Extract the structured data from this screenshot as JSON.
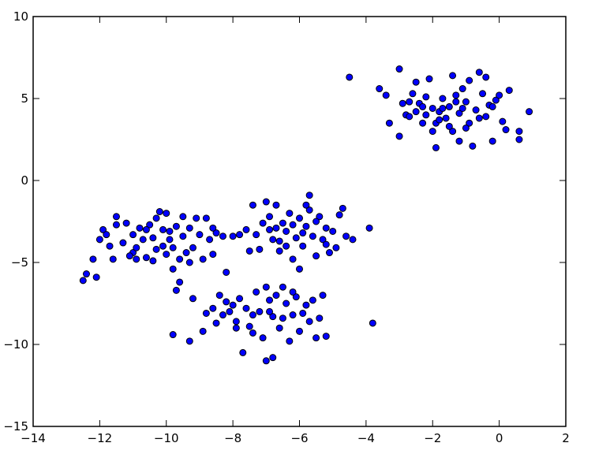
{
  "chart_data": {
    "type": "scatter",
    "title": "",
    "xlabel": "",
    "ylabel": "",
    "xlim": [
      -14,
      2
    ],
    "ylim": [
      -15,
      10
    ],
    "xticks": [
      -14,
      -12,
      -10,
      -8,
      -6,
      -4,
      -2,
      0,
      2
    ],
    "yticks": [
      -15,
      -10,
      -5,
      0,
      5,
      10
    ],
    "xtick_labels": [
      "−14",
      "−12",
      "−10",
      "−8",
      "−6",
      "−4",
      "−2",
      "0",
      "2"
    ],
    "ytick_labels": [
      "−15",
      "−10",
      "−5",
      "0",
      "5",
      "10"
    ],
    "grid": false,
    "marker_color": "#0000ff",
    "marker_edge_color": "#000000",
    "points": [
      [
        -4.5,
        6.3
      ],
      [
        -3.6,
        5.6
      ],
      [
        -3.4,
        5.2
      ],
      [
        -3.3,
        3.5
      ],
      [
        -3.0,
        6.8
      ],
      [
        -2.9,
        4.7
      ],
      [
        -2.8,
        4.0
      ],
      [
        -3.0,
        2.7
      ],
      [
        -2.7,
        3.9
      ],
      [
        -2.6,
        5.3
      ],
      [
        -2.5,
        6.0
      ],
      [
        -2.4,
        4.7
      ],
      [
        -2.3,
        3.5
      ],
      [
        -2.2,
        4.0
      ],
      [
        -2.2,
        5.1
      ],
      [
        -2.1,
        6.2
      ],
      [
        -2.0,
        4.4
      ],
      [
        -1.9,
        3.5
      ],
      [
        -1.9,
        2.0
      ],
      [
        -1.8,
        4.2
      ],
      [
        -1.7,
        5.0
      ],
      [
        -1.6,
        3.8
      ],
      [
        -1.5,
        4.5
      ],
      [
        -1.4,
        6.4
      ],
      [
        -1.4,
        3.0
      ],
      [
        -1.3,
        5.2
      ],
      [
        -1.2,
        4.1
      ],
      [
        -1.2,
        2.4
      ],
      [
        -1.1,
        5.6
      ],
      [
        -1.0,
        4.8
      ],
      [
        -0.9,
        3.5
      ],
      [
        -0.9,
        6.1
      ],
      [
        -0.8,
        2.1
      ],
      [
        -0.7,
        4.3
      ],
      [
        -0.6,
        6.6
      ],
      [
        -0.6,
        3.8
      ],
      [
        -0.5,
        5.3
      ],
      [
        -0.4,
        6.3
      ],
      [
        -0.3,
        4.6
      ],
      [
        -0.2,
        2.4
      ],
      [
        -0.1,
        4.9
      ],
      [
        0.0,
        5.2
      ],
      [
        0.1,
        3.6
      ],
      [
        0.2,
        3.1
      ],
      [
        0.3,
        5.5
      ],
      [
        0.6,
        3.0
      ],
      [
        0.6,
        2.5
      ],
      [
        0.9,
        4.2
      ],
      [
        -2.0,
        3.0
      ],
      [
        -1.7,
        4.4
      ],
      [
        -1.5,
        3.3
      ],
      [
        -1.1,
        4.4
      ],
      [
        -2.5,
        4.2
      ],
      [
        -2.7,
        4.8
      ],
      [
        -0.4,
        3.9
      ],
      [
        -1.8,
        3.7
      ],
      [
        -1.0,
        3.2
      ],
      [
        -0.2,
        4.5
      ],
      [
        -2.3,
        4.5
      ],
      [
        -1.3,
        4.8
      ],
      [
        -12.5,
        -6.1
      ],
      [
        -12.4,
        -5.7
      ],
      [
        -12.2,
        -4.8
      ],
      [
        -12.1,
        -5.9
      ],
      [
        -12.0,
        -3.6
      ],
      [
        -11.9,
        -3.0
      ],
      [
        -11.8,
        -3.3
      ],
      [
        -11.7,
        -4.0
      ],
      [
        -11.6,
        -4.8
      ],
      [
        -11.5,
        -2.2
      ],
      [
        -11.5,
        -2.7
      ],
      [
        -11.3,
        -3.8
      ],
      [
        -11.2,
        -2.6
      ],
      [
        -11.0,
        -3.3
      ],
      [
        -11.0,
        -4.4
      ],
      [
        -10.9,
        -4.8
      ],
      [
        -10.8,
        -2.9
      ],
      [
        -10.7,
        -3.6
      ],
      [
        -10.6,
        -4.7
      ],
      [
        -10.5,
        -2.7
      ],
      [
        -10.4,
        -3.5
      ],
      [
        -10.3,
        -2.3
      ],
      [
        -10.3,
        -4.2
      ],
      [
        -10.2,
        -1.9
      ],
      [
        -10.1,
        -3.0
      ],
      [
        -10.0,
        -4.5
      ],
      [
        -10.0,
        -2.0
      ],
      [
        -9.9,
        -3.6
      ],
      [
        -9.8,
        -5.4
      ],
      [
        -9.8,
        -4.1
      ],
      [
        -9.7,
        -2.8
      ],
      [
        -9.6,
        -4.8
      ],
      [
        -9.6,
        -6.2
      ],
      [
        -9.5,
        -2.2
      ],
      [
        -9.5,
        -3.4
      ],
      [
        -9.4,
        -4.4
      ],
      [
        -9.3,
        -2.9
      ],
      [
        -9.2,
        -4.1
      ],
      [
        -9.1,
        -2.3
      ],
      [
        -9.0,
        -3.3
      ],
      [
        -8.9,
        -4.8
      ],
      [
        -8.8,
        -2.3
      ],
      [
        -8.7,
        -3.6
      ],
      [
        -8.6,
        -4.5
      ],
      [
        -8.5,
        -3.2
      ],
      [
        -8.3,
        -3.4
      ],
      [
        -8.2,
        -5.6
      ],
      [
        -8.0,
        -3.4
      ],
      [
        -7.8,
        -3.3
      ],
      [
        -9.7,
        -6.7
      ],
      [
        -10.6,
        -3.0
      ],
      [
        -10.9,
        -4.1
      ],
      [
        -11.1,
        -4.6
      ],
      [
        -10.1,
        -4.0
      ],
      [
        -9.9,
        -3.1
      ],
      [
        -10.4,
        -4.9
      ],
      [
        -9.3,
        -5.0
      ],
      [
        -8.6,
        -2.9
      ],
      [
        -7.6,
        -3.0
      ],
      [
        -7.4,
        -1.5
      ],
      [
        -7.3,
        -3.3
      ],
      [
        -7.2,
        -4.2
      ],
      [
        -7.0,
        -1.3
      ],
      [
        -6.9,
        -2.2
      ],
      [
        -6.8,
        -3.6
      ],
      [
        -6.7,
        -1.5
      ],
      [
        -6.6,
        -4.3
      ],
      [
        -6.5,
        -2.6
      ],
      [
        -6.4,
        -3.1
      ],
      [
        -6.3,
        -2.0
      ],
      [
        -6.2,
        -4.8
      ],
      [
        -6.1,
        -3.5
      ],
      [
        -6.0,
        -2.3
      ],
      [
        -5.9,
        -4.0
      ],
      [
        -5.8,
        -2.8
      ],
      [
        -5.7,
        -0.9
      ],
      [
        -5.7,
        -1.8
      ],
      [
        -5.6,
        -3.4
      ],
      [
        -5.5,
        -4.6
      ],
      [
        -5.4,
        -2.2
      ],
      [
        -5.3,
        -3.6
      ],
      [
        -5.2,
        -2.9
      ],
      [
        -5.1,
        -4.4
      ],
      [
        -5.0,
        -3.1
      ],
      [
        -4.9,
        -4.1
      ],
      [
        -4.8,
        -2.1
      ],
      [
        -4.7,
        -1.7
      ],
      [
        -4.6,
        -3.4
      ],
      [
        -4.4,
        -3.6
      ],
      [
        -3.9,
        -2.9
      ],
      [
        -6.9,
        -3.0
      ],
      [
        -6.2,
        -2.7
      ],
      [
        -5.9,
        -3.2
      ],
      [
        -6.6,
        -3.7
      ],
      [
        -7.5,
        -4.3
      ],
      [
        -6.4,
        -4.0
      ],
      [
        -5.5,
        -2.5
      ],
      [
        -6.0,
        -5.4
      ],
      [
        -7.1,
        -2.6
      ],
      [
        -5.8,
        -1.5
      ],
      [
        -5.2,
        -3.9
      ],
      [
        -6.7,
        -2.9
      ],
      [
        -9.8,
        -9.4
      ],
      [
        -9.3,
        -9.8
      ],
      [
        -9.2,
        -7.2
      ],
      [
        -8.9,
        -9.2
      ],
      [
        -8.8,
        -8.1
      ],
      [
        -8.6,
        -7.8
      ],
      [
        -8.5,
        -8.7
      ],
      [
        -8.4,
        -7.0
      ],
      [
        -8.3,
        -8.2
      ],
      [
        -8.2,
        -7.4
      ],
      [
        -8.1,
        -8.0
      ],
      [
        -8.0,
        -7.6
      ],
      [
        -7.9,
        -8.6
      ],
      [
        -7.8,
        -7.2
      ],
      [
        -7.7,
        -10.5
      ],
      [
        -7.6,
        -7.8
      ],
      [
        -7.5,
        -8.9
      ],
      [
        -7.4,
        -9.3
      ],
      [
        -7.3,
        -6.8
      ],
      [
        -7.2,
        -8.0
      ],
      [
        -7.1,
        -9.6
      ],
      [
        -7.0,
        -6.5
      ],
      [
        -6.9,
        -7.3
      ],
      [
        -6.8,
        -8.3
      ],
      [
        -6.8,
        -10.8
      ],
      [
        -6.7,
        -7.0
      ],
      [
        -6.6,
        -9.0
      ],
      [
        -6.5,
        -8.4
      ],
      [
        -6.4,
        -7.5
      ],
      [
        -6.3,
        -9.8
      ],
      [
        -6.2,
        -8.2
      ],
      [
        -6.1,
        -7.1
      ],
      [
        -6.0,
        -9.2
      ],
      [
        -5.9,
        -8.1
      ],
      [
        -5.8,
        -7.6
      ],
      [
        -5.7,
        -8.6
      ],
      [
        -5.6,
        -7.3
      ],
      [
        -5.5,
        -9.6
      ],
      [
        -5.4,
        -8.4
      ],
      [
        -5.3,
        -7.0
      ],
      [
        -5.2,
        -9.5
      ],
      [
        -3.8,
        -8.7
      ],
      [
        -7.0,
        -11.0
      ],
      [
        -6.9,
        -8.0
      ],
      [
        -7.4,
        -8.2
      ],
      [
        -6.5,
        -6.5
      ],
      [
        -7.9,
        -9.0
      ],
      [
        -6.2,
        -6.8
      ]
    ]
  }
}
